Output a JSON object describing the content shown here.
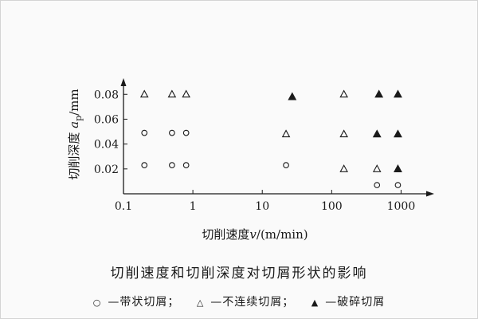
{
  "chart_data": {
    "type": "scatter",
    "title": "切削速度和切削深度对切屑形状的影响",
    "xlabel_main": "切削速度",
    "xlabel_var": "v",
    "xlabel_unit": "/(m/min)",
    "ylabel_main": "切削深度 ",
    "ylabel_var": "a",
    "ylabel_sub": "p",
    "ylabel_unit": "/mm",
    "x_scale": "log",
    "xlim": [
      0.1,
      3000
    ],
    "ylim": [
      0,
      0.093
    ],
    "xticks": [
      0.1,
      1,
      10,
      100,
      1000
    ],
    "xtick_labels": [
      "0.1",
      "1",
      "10",
      "100",
      "1000"
    ],
    "yticks": [
      0.02,
      0.04,
      0.06,
      0.08
    ],
    "ytick_labels": [
      "0.02",
      "0.04",
      "0.06",
      "0.08"
    ],
    "grid": false,
    "series": [
      {
        "name": "带状切屑",
        "marker": "circle-open",
        "points": [
          [
            0.2,
            0.023
          ],
          [
            0.5,
            0.023
          ],
          [
            0.8,
            0.023
          ],
          [
            0.2,
            0.049
          ],
          [
            0.5,
            0.049
          ],
          [
            0.8,
            0.049
          ],
          [
            22,
            0.023
          ],
          [
            450,
            0.007
          ],
          [
            900,
            0.007
          ]
        ]
      },
      {
        "name": "不连续切屑",
        "marker": "triangle-open",
        "points": [
          [
            0.2,
            0.08
          ],
          [
            0.5,
            0.08
          ],
          [
            0.8,
            0.08
          ],
          [
            22,
            0.048
          ],
          [
            150,
            0.08
          ],
          [
            150,
            0.048
          ],
          [
            150,
            0.02
          ],
          [
            450,
            0.02
          ]
        ]
      },
      {
        "name": "破碎切屑",
        "marker": "triangle-filled",
        "points": [
          [
            27,
            0.078
          ],
          [
            480,
            0.08
          ],
          [
            900,
            0.08
          ],
          [
            450,
            0.048
          ],
          [
            900,
            0.048
          ],
          [
            900,
            0.02
          ]
        ]
      }
    ],
    "legend_text": [
      "—带状切屑；",
      "—不连续切屑；",
      "—破碎切屑"
    ]
  }
}
